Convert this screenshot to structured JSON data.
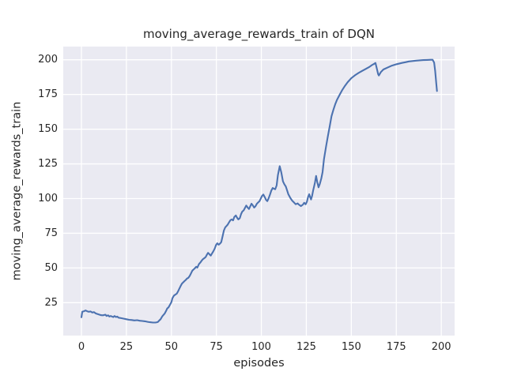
{
  "chart_data": {
    "type": "line",
    "title": "moving_average_rewards_train of DQN",
    "xlabel": "episodes",
    "ylabel": "moving_average_rewards_train",
    "xlim": [
      -10.1,
      207.4
    ],
    "ylim": [
      1.3,
      209.5
    ],
    "x_ticks": [
      0,
      25,
      50,
      75,
      100,
      125,
      150,
      175,
      200
    ],
    "y_ticks": [
      25,
      50,
      75,
      100,
      125,
      150,
      175,
      200
    ],
    "grid": true,
    "legend_position": "none",
    "colors": {
      "line": "#4c72b0",
      "plot_background": "#eaeaf2",
      "grid": "#ffffff",
      "text": "#262626",
      "figure_background": "#ffffff"
    },
    "series": [
      {
        "name": "moving_average_rewards_train",
        "points": [
          [
            0,
            14.5
          ],
          [
            0.5,
            18.5
          ],
          [
            1.5,
            18.9
          ],
          [
            2.3,
            19.4
          ],
          [
            3.2,
            18.8
          ],
          [
            4.2,
            18.4
          ],
          [
            5,
            18.7
          ],
          [
            6,
            17.9
          ],
          [
            7,
            18.2
          ],
          [
            8,
            17.2
          ],
          [
            9,
            16.8
          ],
          [
            10,
            16.4
          ],
          [
            11,
            16.0
          ],
          [
            12,
            15.9
          ],
          [
            13.3,
            16.4
          ],
          [
            14,
            15.4
          ],
          [
            14.8,
            15.9
          ],
          [
            15.5,
            15.0
          ],
          [
            16.3,
            15.4
          ],
          [
            17,
            15.0
          ],
          [
            17.7,
            14.6
          ],
          [
            18.4,
            15.4
          ],
          [
            19.2,
            14.6
          ],
          [
            19.9,
            15.0
          ],
          [
            20.6,
            14.2
          ],
          [
            22,
            13.9
          ],
          [
            23.6,
            13.5
          ],
          [
            25,
            13.1
          ],
          [
            26.5,
            12.7
          ],
          [
            28,
            12.5
          ],
          [
            29.4,
            12.2
          ],
          [
            31,
            12.4
          ],
          [
            32.4,
            12.0
          ],
          [
            33.8,
            11.8
          ],
          [
            35.3,
            11.6
          ],
          [
            36.8,
            11.2
          ],
          [
            38.2,
            10.9
          ],
          [
            39.7,
            10.7
          ],
          [
            41.1,
            10.7
          ],
          [
            42,
            10.9
          ],
          [
            42.6,
            11.2
          ],
          [
            43.3,
            12.2
          ],
          [
            44,
            13.1
          ],
          [
            45,
            15.3
          ],
          [
            46.3,
            17.3
          ],
          [
            47,
            19.0
          ],
          [
            47.7,
            20.8
          ],
          [
            48.4,
            21.6
          ],
          [
            49.2,
            23.5
          ],
          [
            50,
            25.4
          ],
          [
            50.6,
            28.2
          ],
          [
            51.4,
            30.1
          ],
          [
            52.2,
            30.8
          ],
          [
            53,
            31.5
          ],
          [
            53.6,
            32.9
          ],
          [
            54.3,
            34.8
          ],
          [
            55,
            36.7
          ],
          [
            55.8,
            38.6
          ],
          [
            56.5,
            39.6
          ],
          [
            57.2,
            40.5
          ],
          [
            58,
            41.4
          ],
          [
            58.7,
            42.4
          ],
          [
            59.4,
            42.9
          ],
          [
            60.2,
            44.3
          ],
          [
            60.9,
            46.1
          ],
          [
            61.6,
            48.0
          ],
          [
            62.4,
            49.0
          ],
          [
            63.1,
            49.9
          ],
          [
            63.8,
            50.9
          ],
          [
            64.4,
            50.3
          ],
          [
            65.3,
            52.8
          ],
          [
            66,
            53.8
          ],
          [
            66.8,
            55.2
          ],
          [
            67.5,
            56.3
          ],
          [
            68.2,
            57.0
          ],
          [
            69,
            57.8
          ],
          [
            69.7,
            59.5
          ],
          [
            70.4,
            60.9
          ],
          [
            71.2,
            59.8
          ],
          [
            71.9,
            58.9
          ],
          [
            72.6,
            60.5
          ],
          [
            73.3,
            62.0
          ],
          [
            74.1,
            64.0
          ],
          [
            74.8,
            66.5
          ],
          [
            75.5,
            67.8
          ],
          [
            76.3,
            66.8
          ],
          [
            77,
            67.5
          ],
          [
            77.7,
            68.6
          ],
          [
            78.5,
            73.0
          ],
          [
            79.2,
            77.0
          ],
          [
            79.9,
            79.2
          ],
          [
            80.6,
            80.2
          ],
          [
            81.3,
            81.2
          ],
          [
            82.1,
            83.0
          ],
          [
            82.8,
            84.4
          ],
          [
            83.5,
            85.0
          ],
          [
            84.3,
            84.3
          ],
          [
            85,
            86.8
          ],
          [
            85.8,
            87.8
          ],
          [
            86.5,
            86.3
          ],
          [
            87.2,
            85.0
          ],
          [
            88,
            85.9
          ],
          [
            88.7,
            88.8
          ],
          [
            89.4,
            90.6
          ],
          [
            90.2,
            91.6
          ],
          [
            91,
            93.5
          ],
          [
            91.6,
            95.0
          ],
          [
            92.4,
            93.5
          ],
          [
            93.1,
            92.5
          ],
          [
            93.8,
            94.4
          ],
          [
            94.5,
            96.3
          ],
          [
            95.3,
            95.0
          ],
          [
            96,
            93.5
          ],
          [
            96.7,
            94.4
          ],
          [
            97.5,
            96.3
          ],
          [
            98.2,
            97.2
          ],
          [
            99,
            98.2
          ],
          [
            99.7,
            100.1
          ],
          [
            100.4,
            102.0
          ],
          [
            101.1,
            102.9
          ],
          [
            101.9,
            101.0
          ],
          [
            102.6,
            99.1
          ],
          [
            103.3,
            98.2
          ],
          [
            104,
            100.1
          ],
          [
            104.8,
            102.9
          ],
          [
            105.5,
            105.7
          ],
          [
            106.3,
            107.6
          ],
          [
            107,
            107.1
          ],
          [
            107.7,
            106.7
          ],
          [
            108.5,
            109.5
          ],
          [
            109.2,
            116.9
          ],
          [
            110.2,
            123.3
          ],
          [
            111.1,
            118.8
          ],
          [
            112,
            112.4
          ],
          [
            112.8,
            110.3
          ],
          [
            113.6,
            108.7
          ],
          [
            114.3,
            105.9
          ],
          [
            115,
            103.1
          ],
          [
            116.2,
            100.3
          ],
          [
            117.2,
            98.4
          ],
          [
            118.3,
            97.0
          ],
          [
            119.1,
            95.9
          ],
          [
            120.2,
            96.5
          ],
          [
            120.9,
            95.6
          ],
          [
            122,
            94.6
          ],
          [
            123.1,
            95.6
          ],
          [
            123.8,
            97.0
          ],
          [
            124.6,
            95.9
          ],
          [
            125.3,
            97.8
          ],
          [
            126,
            101.2
          ],
          [
            126.6,
            103.1
          ],
          [
            127.1,
            101.2
          ],
          [
            127.6,
            99.3
          ],
          [
            128.2,
            102.1
          ],
          [
            128.8,
            105.9
          ],
          [
            129.3,
            108.8
          ],
          [
            129.8,
            111.6
          ],
          [
            130.4,
            116.3
          ],
          [
            131.1,
            111.6
          ],
          [
            131.8,
            108.1
          ],
          [
            132.5,
            110.5
          ],
          [
            133.3,
            114.5
          ],
          [
            134,
            119.1
          ],
          [
            134.8,
            128.5
          ],
          [
            136,
            137.8
          ],
          [
            137,
            145.3
          ],
          [
            138,
            152.3
          ],
          [
            139,
            159.3
          ],
          [
            140,
            163.8
          ],
          [
            141,
            167.8
          ],
          [
            142,
            171.1
          ],
          [
            143.5,
            174.8
          ],
          [
            145,
            178.3
          ],
          [
            146.5,
            181.3
          ],
          [
            148,
            183.9
          ],
          [
            150,
            186.8
          ],
          [
            152,
            188.8
          ],
          [
            154,
            190.5
          ],
          [
            156,
            192.0
          ],
          [
            158,
            193.4
          ],
          [
            160,
            194.8
          ],
          [
            161.5,
            196.2
          ],
          [
            162.7,
            197.1
          ],
          [
            163.4,
            197.7
          ],
          [
            164.2,
            193.5
          ],
          [
            164.9,
            189.6
          ],
          [
            165.3,
            188.7
          ],
          [
            166.4,
            191.1
          ],
          [
            167.8,
            193.0
          ],
          [
            170,
            194.3
          ],
          [
            172.2,
            195.6
          ],
          [
            175.2,
            196.8
          ],
          [
            178.1,
            197.7
          ],
          [
            180.3,
            198.3
          ],
          [
            182,
            198.8
          ],
          [
            184,
            199.1
          ],
          [
            186,
            199.4
          ],
          [
            188,
            199.6
          ],
          [
            190,
            199.8
          ],
          [
            192,
            199.9
          ],
          [
            194,
            200.0
          ],
          [
            195.2,
            200.0
          ],
          [
            196,
            198.0
          ],
          [
            196.6,
            192.0
          ],
          [
            197.2,
            183.0
          ],
          [
            197.6,
            177.5
          ]
        ]
      }
    ]
  }
}
